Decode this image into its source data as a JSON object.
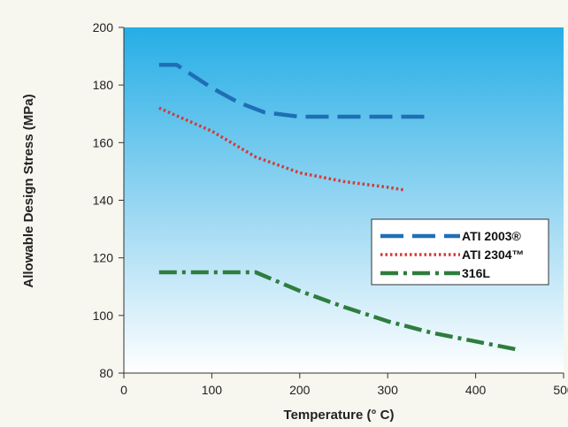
{
  "chart_data": {
    "type": "line",
    "xlabel": "Temperature (° C)",
    "ylabel": "Allowable Design Stress (MPa)",
    "xlim": [
      0,
      500
    ],
    "ylim": [
      80,
      200
    ],
    "xticks": [
      "0",
      "100",
      "200",
      "300",
      "400",
      "500"
    ],
    "yticks": [
      "80",
      "100",
      "120",
      "140",
      "160",
      "180",
      "200"
    ],
    "grid": false,
    "legend_position": "right",
    "background": "gradient blue to white",
    "series": [
      {
        "name": "ATI 2003®",
        "color": "#1f6fb5",
        "style": "dashed",
        "x": [
          40,
          60,
          100,
          130,
          160,
          200,
          250,
          300,
          350
        ],
        "y": [
          187,
          187,
          179,
          174,
          170.5,
          169,
          169,
          169,
          169
        ]
      },
      {
        "name": "ATI 2304™",
        "color": "#d43a36",
        "style": "dotted",
        "x": [
          40,
          100,
          150,
          200,
          250,
          300,
          320
        ],
        "y": [
          172,
          164,
          155,
          149.5,
          146.5,
          144.5,
          143.5
        ]
      },
      {
        "name": "316L",
        "color": "#2e7d3e",
        "style": "dashdot",
        "x": [
          40,
          150,
          200,
          250,
          300,
          350,
          400,
          450
        ],
        "y": [
          115,
          115,
          108.5,
          103,
          98,
          94,
          91,
          88
        ]
      }
    ]
  }
}
